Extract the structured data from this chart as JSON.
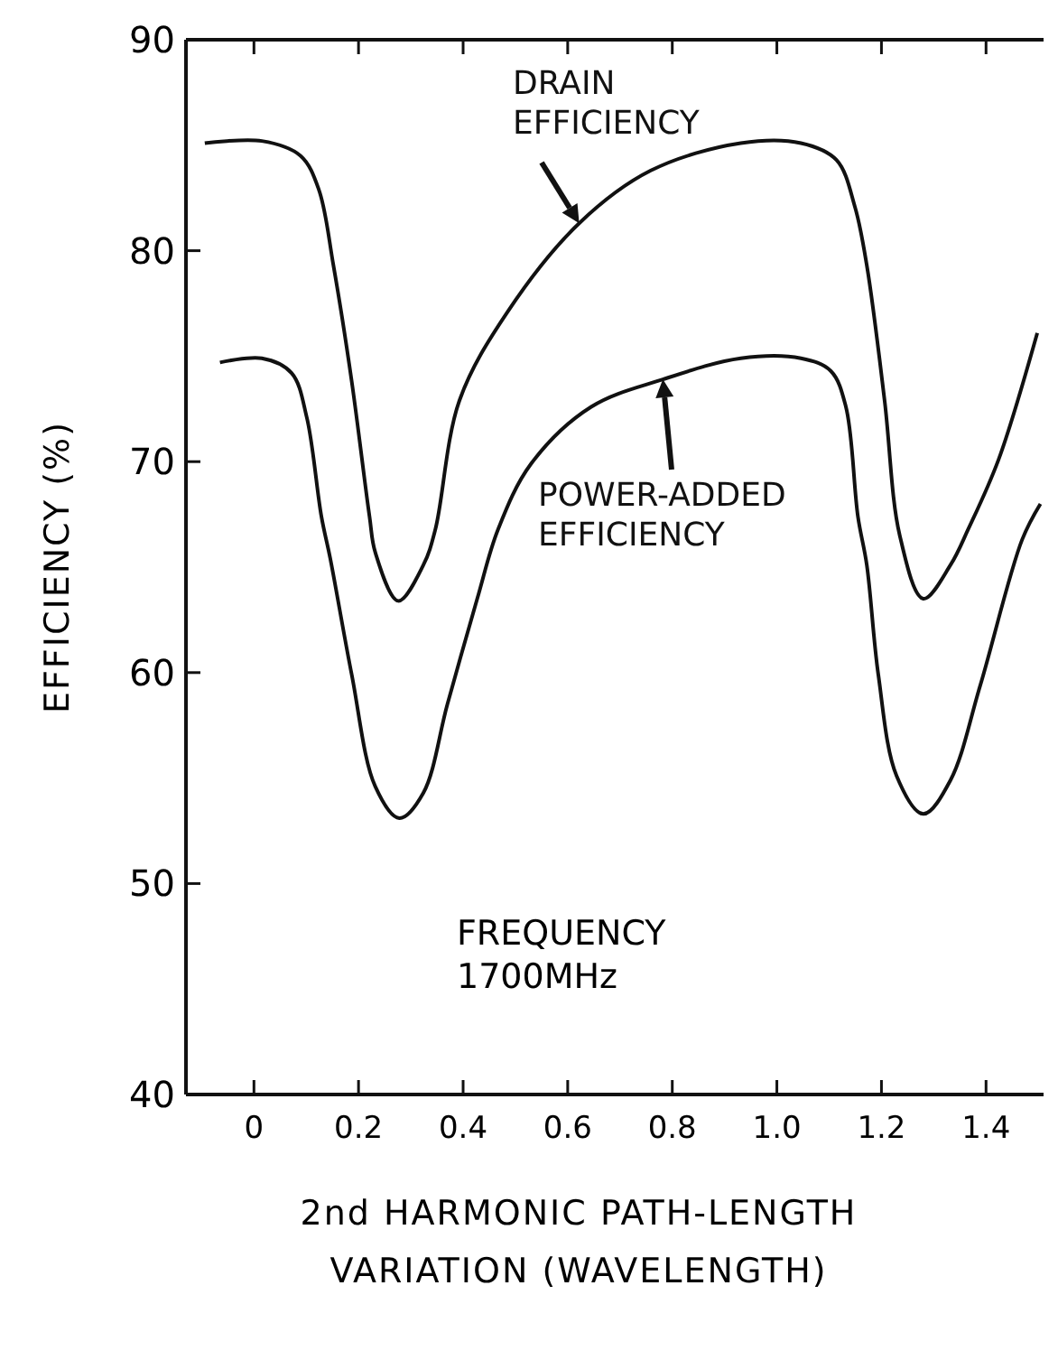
{
  "chart_data": {
    "type": "line",
    "xlabel": "2nd HARMONIC PATH-LENGTH\nVARIATION (WAVELENGTH)",
    "ylabel": "EFFICIENCY (%)",
    "xlim": [
      -0.13,
      1.51
    ],
    "xticks": [
      0,
      0.2,
      0.4,
      0.6,
      0.8,
      {
        "value": 1,
        "label": "1.0"
      },
      1.2,
      1.4
    ],
    "legend": "top",
    "ylim": [
      40,
      90
    ],
    "yticks": [
      40,
      50,
      60,
      70,
      80,
      90
    ],
    "series": [
      {
        "name": "DRAIN EFFICIENCY",
        "color": "#111111",
        "x": [
          -0.094,
          0.015,
          0.089,
          0.124,
          0.152,
          0.187,
          0.221,
          0.232,
          0.276,
          0.324,
          0.347,
          0.393,
          0.485,
          0.622,
          0.759,
          0.931,
          1.046,
          1.114,
          1.149,
          1.172,
          1.206,
          1.235,
          1.28,
          1.332,
          1.366,
          1.424,
          1.498
        ],
        "values": [
          85.1,
          85.2,
          84.5,
          82.9,
          79.3,
          73.8,
          67.4,
          65.7,
          63.4,
          65.1,
          66.8,
          72.9,
          77.1,
          81.3,
          83.8,
          85.1,
          85.1,
          84.3,
          82.1,
          79.3,
          72.9,
          66.5,
          63.5,
          65.1,
          66.8,
          70.1,
          76.1
        ]
      },
      {
        "name": "POWER-ADDED EFFICIENCY",
        "color": "#111111",
        "x": [
          -0.065,
          0.015,
          0.072,
          0.101,
          0.129,
          0.146,
          0.187,
          0.232,
          0.278,
          0.324,
          0.37,
          0.427,
          0.467,
          0.53,
          0.645,
          0.782,
          0.931,
          1.046,
          1.103,
          1.132,
          1.155,
          1.172,
          1.194,
          1.229,
          1.28,
          1.332,
          1.389,
          1.469,
          1.504
        ],
        "values": [
          74.7,
          74.9,
          74.2,
          72.1,
          67.4,
          65.4,
          59.9,
          54.6,
          53.1,
          54.3,
          58.5,
          63.5,
          66.8,
          69.9,
          72.6,
          73.9,
          74.9,
          74.9,
          74.3,
          72.6,
          67.4,
          65.1,
          59.9,
          55.1,
          53.3,
          54.9,
          59.4,
          66.3,
          68.0
        ]
      }
    ],
    "annotations": [
      "FREQUENCY\n1700MHz"
    ]
  }
}
